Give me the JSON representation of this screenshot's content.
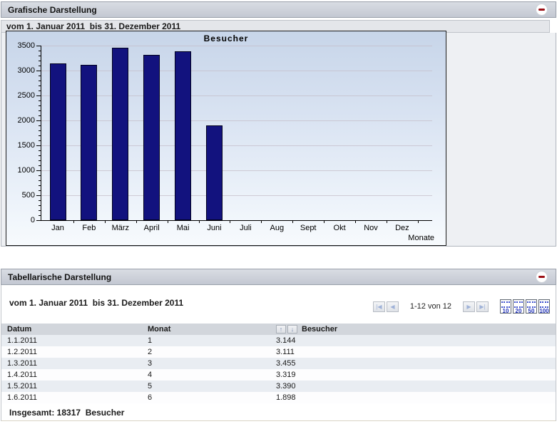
{
  "graph_panel": {
    "title": "Grafische Darstellung",
    "date_range": "vom 1. Januar 2011  bis 31. Dezember 2011"
  },
  "chart_data": {
    "type": "bar",
    "title": "Besucher",
    "xlabel": "Monate",
    "categories": [
      "Jan",
      "Feb",
      "März",
      "April",
      "Mai",
      "Juni",
      "Juli",
      "Aug",
      "Sept",
      "Okt",
      "Nov",
      "Dez"
    ],
    "values": [
      3144,
      3111,
      3455,
      3319,
      3390,
      1898,
      0,
      0,
      0,
      0,
      0,
      0
    ],
    "ylim": [
      0,
      3500
    ],
    "ytick_step": 500,
    "ytick_labels": [
      "0",
      "500",
      "1000",
      "1500",
      "2000",
      "2500",
      "3000",
      "3500"
    ],
    "minor_tick_step": 100,
    "grid": true,
    "legend": "none",
    "bar_color": "#12127e"
  },
  "table_panel": {
    "title": "Tabellarische Darstellung",
    "date_range": "vom 1. Januar 2011  bis 31. Dezember 2011",
    "pagination": {
      "range_label": "1-12 von 12",
      "nav_left": [
        {
          "name": "first-page-button",
          "glyph": "|◀"
        },
        {
          "name": "prev-page-button",
          "glyph": "◀"
        }
      ],
      "nav_right": [
        {
          "name": "next-page-button",
          "glyph": "▶"
        },
        {
          "name": "last-page-button",
          "glyph": "▶|"
        }
      ],
      "page_sizes": [
        "10",
        "20",
        "50",
        "100"
      ]
    },
    "table": {
      "columns": [
        "Datum",
        "Monat",
        "Besucher"
      ],
      "sort_icons": [
        {
          "name": "sort-ascending-icon",
          "glyph": "↑"
        },
        {
          "name": "sort-descending-icon",
          "glyph": "↓"
        }
      ],
      "rows": [
        [
          "1.1.2011",
          "1",
          "3.144"
        ],
        [
          "1.2.2011",
          "2",
          "3.111"
        ],
        [
          "1.3.2011",
          "3",
          "3.455"
        ],
        [
          "1.4.2011",
          "4",
          "3.319"
        ],
        [
          "1.5.2011",
          "5",
          "3.390"
        ],
        [
          "1.6.2011",
          "6",
          "1.898"
        ]
      ]
    },
    "total": "Insgesamt: 18317  Besucher"
  }
}
